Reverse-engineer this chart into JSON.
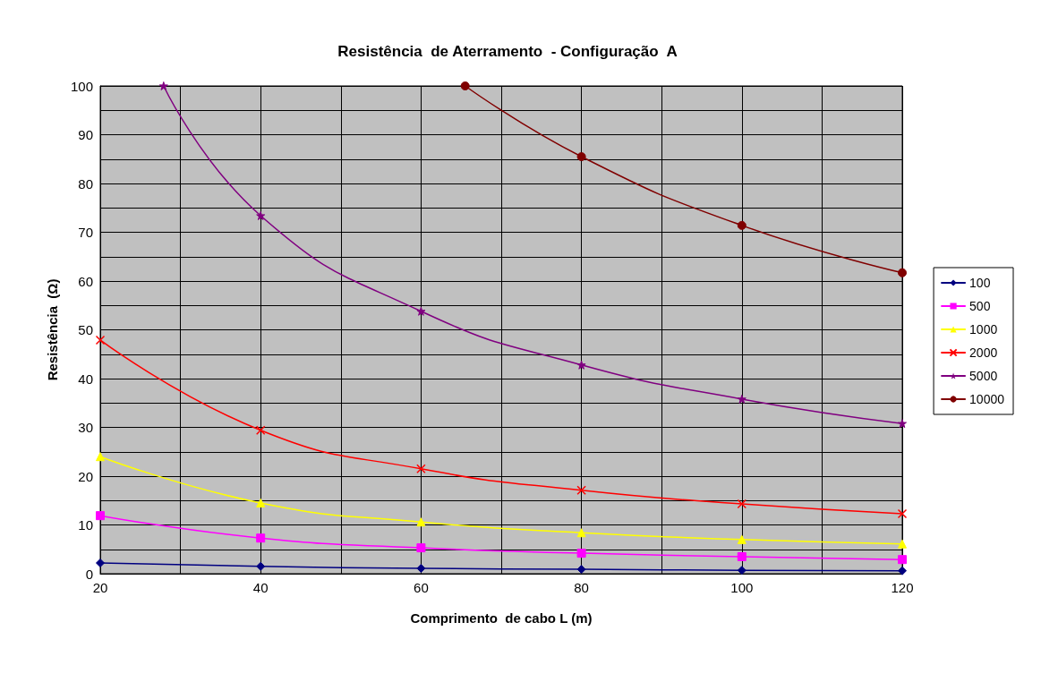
{
  "chart_data": {
    "type": "line",
    "title": "Resistência  de Aterramento  - Configuração  A",
    "xlabel": "Comprimento  de cabo L (m)",
    "ylabel": "Resistência  (Ω)",
    "x": [
      20,
      40,
      60,
      80,
      100,
      120
    ],
    "xlim": [
      20,
      120
    ],
    "xticks": [
      20,
      {
        "value": 30,
        "label": null
      },
      40,
      {
        "value": 50,
        "label": null
      },
      60,
      {
        "value": 70,
        "label": null
      },
      80,
      {
        "value": 90,
        "label": null
      },
      100,
      {
        "value": 110,
        "label": null
      },
      120
    ],
    "ylim": [
      0,
      100
    ],
    "yticks": [
      0,
      {
        "value": 5,
        "label": null
      },
      10,
      {
        "value": 15,
        "label": null
      },
      20,
      {
        "value": 25,
        "label": null
      },
      30,
      {
        "value": 35,
        "label": null
      },
      40,
      {
        "value": 45,
        "label": null
      },
      50,
      {
        "value": 55,
        "label": null
      },
      60,
      {
        "value": 65,
        "label": null
      },
      70,
      {
        "value": 75,
        "label": null
      },
      80,
      {
        "value": 85,
        "label": null
      },
      90,
      {
        "value": 95,
        "label": null
      },
      100
    ],
    "grid": true,
    "legend": "right",
    "line_style": "solid",
    "series": [
      {
        "name": "100",
        "color": "#000080",
        "marker": "diamond",
        "values": [
          2.2,
          1.5,
          1.1,
          0.9,
          0.7,
          0.6
        ]
      },
      {
        "name": "500",
        "color": "#ff00ff",
        "marker": "square",
        "values": [
          11.9,
          7.3,
          5.3,
          4.2,
          3.5,
          2.9
        ]
      },
      {
        "name": "1000",
        "color": "#ffff00",
        "marker": "triangle",
        "values": [
          24.0,
          14.5,
          10.6,
          8.4,
          7.0,
          6.1
        ]
      },
      {
        "name": "2000",
        "color": "#ff0000",
        "marker": "cross",
        "values": [
          47.9,
          29.4,
          21.5,
          17.1,
          14.3,
          12.3
        ]
      },
      {
        "name": "5000",
        "color": "#800080",
        "marker": "star",
        "x": [
          27.9,
          40,
          60,
          80,
          100,
          120
        ],
        "values": [
          100,
          73.4,
          53.8,
          42.8,
          35.8,
          30.8
        ]
      },
      {
        "name": "10000",
        "color": "#800000",
        "marker": "circle",
        "x": [
          65.5,
          80,
          100,
          120
        ],
        "values": [
          100,
          85.5,
          71.4,
          61.7
        ]
      }
    ]
  }
}
